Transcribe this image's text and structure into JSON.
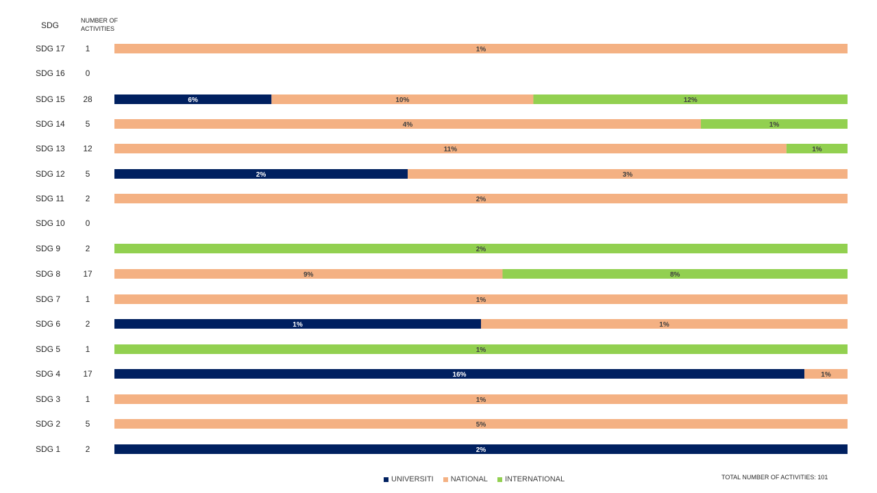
{
  "header": {
    "sdg_label": "SDG",
    "count_label": "NUMBER OF ACTIVITIES"
  },
  "colors": {
    "universiti": "#002060",
    "national": "#F4B183",
    "international": "#92D050"
  },
  "legend": {
    "universiti": "UNIVERSITI",
    "national": "NATIONAL",
    "international": "INTERNATIONAL"
  },
  "total_label": "TOTAL NUMBER OF ACTIVITIES: 101",
  "chart_data": {
    "type": "bar",
    "orientation": "horizontal",
    "stacked": "100%",
    "legend_position": "bottom",
    "grid": false,
    "categories": [
      "SDG 17",
      "SDG 16",
      "SDG 15",
      "SDG 14",
      "SDG 13",
      "SDG 12",
      "SDG 11",
      "SDG 10",
      "SDG 9",
      "SDG 8",
      "SDG 7",
      "SDG 6",
      "SDG 5",
      "SDG 4",
      "SDG 3",
      "SDG 2",
      "SDG 1"
    ],
    "counts": [
      1,
      0,
      28,
      5,
      12,
      5,
      2,
      0,
      2,
      17,
      1,
      2,
      1,
      17,
      1,
      5,
      2
    ],
    "series": [
      {
        "name": "UNIVERSITI",
        "color_key": "universiti",
        "values": [
          0,
          0,
          6,
          0,
          0,
          2,
          0,
          0,
          0,
          0,
          0,
          1,
          0,
          16,
          0,
          0,
          2
        ],
        "labels": [
          "",
          "",
          "6%",
          "",
          "",
          "2%",
          "",
          "",
          "",
          "",
          "",
          "1%",
          "",
          "16%",
          "",
          "",
          "2%"
        ]
      },
      {
        "name": "NATIONAL",
        "color_key": "national",
        "values": [
          1,
          0,
          10,
          4,
          11,
          3,
          2,
          0,
          0,
          9,
          1,
          1,
          0,
          1,
          1,
          5,
          0
        ],
        "labels": [
          "1%",
          "",
          "10%",
          "4%",
          "11%",
          "3%",
          "2%",
          "",
          "",
          "9%",
          "1%",
          "1%",
          "",
          "1%",
          "1%",
          "5%",
          ""
        ]
      },
      {
        "name": "INTERNATIONAL",
        "color_key": "international",
        "values": [
          0,
          0,
          12,
          1,
          1,
          0,
          0,
          0,
          2,
          8,
          0,
          0,
          1,
          0,
          0,
          0,
          0
        ],
        "labels": [
          "",
          "",
          "12%",
          "1%",
          "1%",
          "",
          "",
          "",
          "2%",
          "8%",
          "",
          "",
          "1%",
          "",
          "",
          "",
          ""
        ]
      }
    ]
  }
}
